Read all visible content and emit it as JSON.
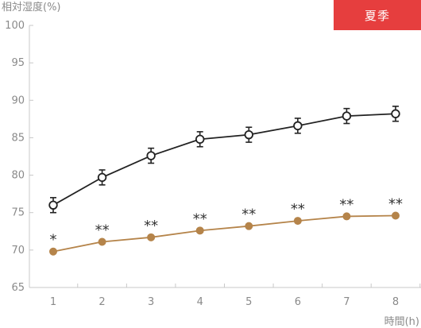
{
  "badge": {
    "label": "夏季",
    "color": "#e63e3e"
  },
  "chart_data": {
    "type": "line",
    "ylabel": "相対湿度(%)",
    "xlabel": "時間(h)",
    "x": [
      1,
      2,
      3,
      4,
      5,
      6,
      7,
      8
    ],
    "ylim": [
      65,
      100
    ],
    "yticks": [
      65,
      70,
      75,
      80,
      85,
      90,
      95,
      100
    ],
    "grid": false,
    "series": [
      {
        "values": [
          76.0,
          79.7,
          82.6,
          84.8,
          85.4,
          86.6,
          87.9,
          88.2
        ],
        "error": [
          1.0,
          1.0,
          1.0,
          1.0,
          1.0,
          1.0,
          1.0,
          1.0
        ],
        "color": "#222222",
        "marker": "open-circle"
      },
      {
        "values": [
          69.8,
          71.1,
          71.7,
          72.6,
          73.2,
          73.9,
          74.5,
          74.6
        ],
        "color": "#b5844a",
        "marker": "filled-circle",
        "annotations": [
          "*",
          "**",
          "**",
          "**",
          "**",
          "**",
          "**",
          "**"
        ]
      }
    ]
  }
}
